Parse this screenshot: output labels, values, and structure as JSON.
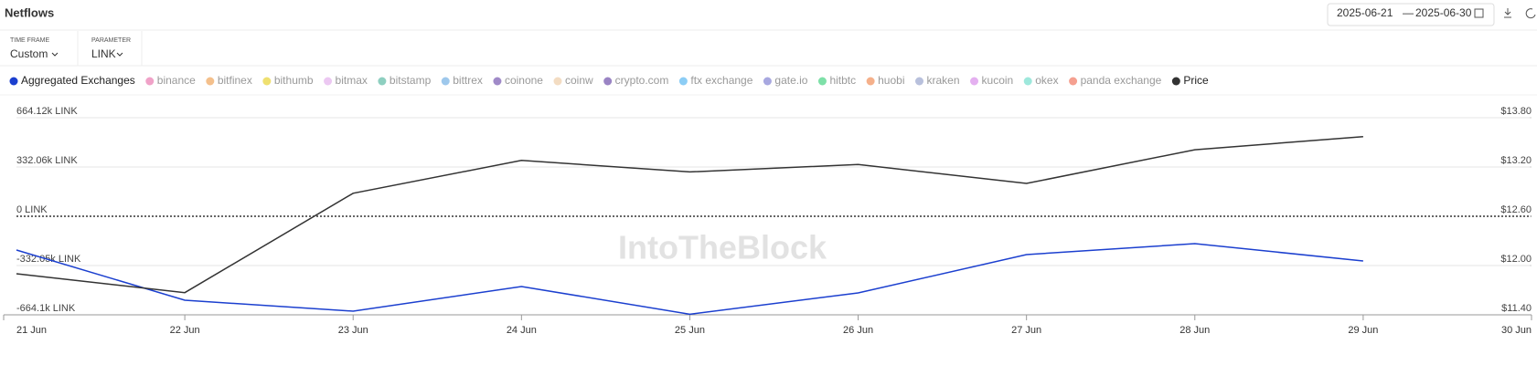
{
  "header": {
    "title": "Netflows",
    "date_from": "2025-06-21",
    "date_separator": "—",
    "date_to": "2025-06-30"
  },
  "controls": [
    {
      "label": "TIME FRAME",
      "value": "Custom"
    },
    {
      "label": "PARAMETER",
      "value": "LINK"
    }
  ],
  "chart_data": {
    "type": "line",
    "watermark": "IntoTheBlock",
    "categories": [
      "21 Jun",
      "22 Jun",
      "23 Jun",
      "24 Jun",
      "25 Jun",
      "26 Jun",
      "27 Jun",
      "28 Jun",
      "29 Jun",
      "30 Jun"
    ],
    "ylim": [
      -664100,
      664120
    ],
    "yticks": [
      {
        "value": -664100,
        "label": "-664.1k LINK"
      },
      {
        "value": -332050,
        "label": "-332.05k LINK"
      },
      {
        "value": 0,
        "label": "0 LINK"
      },
      {
        "value": 332060,
        "label": "332.06k LINK"
      },
      {
        "value": 664120,
        "label": "664.12k LINK"
      }
    ],
    "y2lim": [
      11.4,
      13.8
    ],
    "y2ticks": [
      {
        "value": 11.4,
        "label": "$11.40"
      },
      {
        "value": 12,
        "label": "$12.00"
      },
      {
        "value": 12.6,
        "label": "$12.60"
      },
      {
        "value": 13.2,
        "label": "$13.20"
      },
      {
        "value": 13.8,
        "label": "$13.80"
      }
    ],
    "grid": true,
    "series": [
      {
        "name": "Aggregated Exchanges",
        "color": "#1b3fcf",
        "visible": true,
        "values": [
          -227500,
          -565700,
          -639500,
          -473500,
          -660000,
          -516500,
          -258300,
          -184500,
          -301300,
          null
        ]
      },
      {
        "name": "binance",
        "color": "#f0a2c8",
        "visible": false
      },
      {
        "name": "bitfinex",
        "color": "#f4c08c",
        "visible": false
      },
      {
        "name": "bithumb",
        "color": "#efe070",
        "visible": false
      },
      {
        "name": "bitmax",
        "color": "#ecc8f2",
        "visible": false
      },
      {
        "name": "bitstamp",
        "color": "#8ecfc0",
        "visible": false
      },
      {
        "name": "bittrex",
        "color": "#9ec8ec",
        "visible": false
      },
      {
        "name": "coinone",
        "color": "#a08ac8",
        "visible": false
      },
      {
        "name": "coinw",
        "color": "#f3dcc2",
        "visible": false
      },
      {
        "name": "crypto.com",
        "color": "#9a84c4",
        "visible": false
      },
      {
        "name": "ftx exchange",
        "color": "#8ccdf5",
        "visible": false
      },
      {
        "name": "gate.io",
        "color": "#a8a8e0",
        "visible": false
      },
      {
        "name": "hitbtc",
        "color": "#7ee0a8",
        "visible": false
      },
      {
        "name": "huobi",
        "color": "#f5b08a",
        "visible": false
      },
      {
        "name": "kraken",
        "color": "#b8c0dc",
        "visible": false
      },
      {
        "name": "kucoin",
        "color": "#e4b0f0",
        "visible": false
      },
      {
        "name": "okex",
        "color": "#9ee8dc",
        "visible": false
      },
      {
        "name": "panda exchange",
        "color": "#f5a090",
        "visible": false
      },
      {
        "name": "Price",
        "color": "#333333",
        "visible": true,
        "axis": "y2",
        "values": [
          11.9,
          11.67,
          12.88,
          13.28,
          13.14,
          13.23,
          13.0,
          13.41,
          13.57,
          null
        ]
      }
    ]
  }
}
